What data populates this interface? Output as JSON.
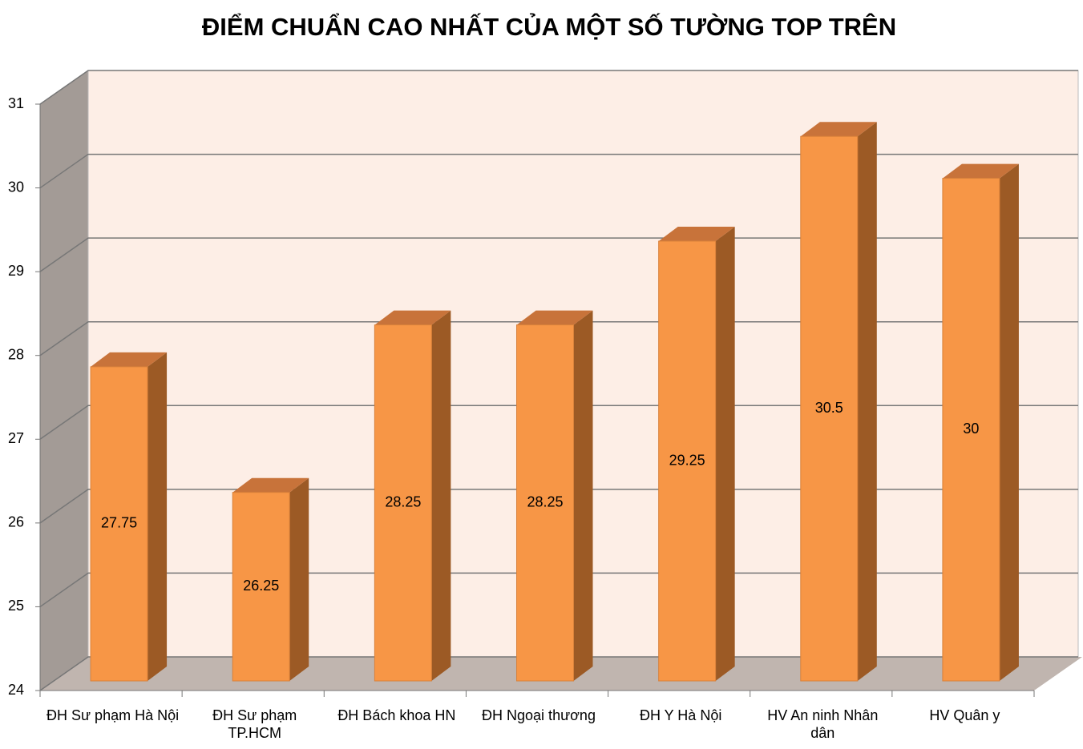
{
  "chart_data": {
    "type": "bar3d",
    "title": "ĐIỂM CHUẨN CAO NHẤT CỦA MỘT SỐ TƯỜNG TOP TRÊN",
    "categories": [
      "ĐH Sư phạm Hà Nội",
      "ĐH Sư phạm TP.HCM",
      "ĐH Bách khoa HN",
      "ĐH Ngoại thương",
      "ĐH Y Hà Nội",
      "HV An ninh Nhân dân",
      "HV Quân y"
    ],
    "values": [
      27.75,
      26.25,
      28.25,
      28.25,
      29.25,
      30.5,
      30
    ],
    "color": "#f79646",
    "ylim": [
      24,
      31
    ],
    "yticks": [
      24,
      25,
      26,
      27,
      28,
      29,
      30,
      31
    ],
    "grid": true
  }
}
